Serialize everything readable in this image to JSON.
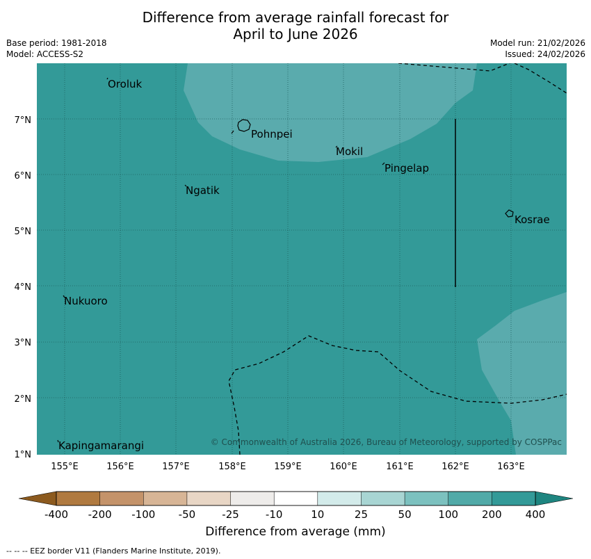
{
  "title": {
    "line1": "Difference from average rainfall forecast for",
    "line2": "April to June 2026"
  },
  "meta": {
    "base_period": "Base period: 1981-2018",
    "model": "Model: ACCESS-S2",
    "model_run": "Model run: 21/02/2026",
    "issued": "Issued: 24/02/2026"
  },
  "map": {
    "lon_ticks": [
      "155°E",
      "156°E",
      "157°E",
      "158°E",
      "159°E",
      "160°E",
      "161°E",
      "162°E",
      "163°E"
    ],
    "lat_ticks": [
      "1°N",
      "2°N",
      "3°N",
      "4°N",
      "5°N",
      "6°N",
      "7°N"
    ],
    "places": [
      "Oroluk",
      "Pohnpei",
      "Mokil",
      "Pingelap",
      "Ngatik",
      "Kosrae",
      "Nukuoro",
      "Kapingamarangi"
    ],
    "copyright": "© Commonwealth of Australia 2026, Bureau of Meteorology, supported by COSPPac",
    "colors": {
      "dominant": "#339a98",
      "lighter": "#5aabad"
    }
  },
  "colorbar": {
    "labels": [
      "-400",
      "-200",
      "-100",
      "-50",
      "-25",
      "-10",
      "10",
      "25",
      "50",
      "100",
      "200",
      "400"
    ],
    "colors": [
      "#8c5a1e",
      "#b07a40",
      "#c4936a",
      "#d7b596",
      "#e8d6c5",
      "#eeecea",
      "#ffffff",
      "#d3ebea",
      "#a8d5d3",
      "#7cc1bf",
      "#51aaa8",
      "#339a98",
      "#1e8580"
    ],
    "title": "Difference from average (mm)"
  },
  "footnote": "--  --  -- EEZ border V11 (Flanders Marine Institute, 2019)."
}
